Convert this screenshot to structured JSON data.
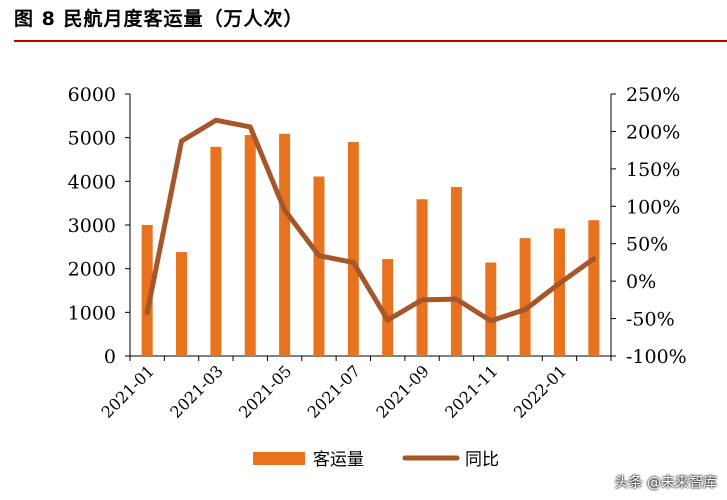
{
  "figure": {
    "title": "图 8  民航月度客运量（万人次）"
  },
  "chart_data": {
    "type": "bar+line",
    "categories": [
      "2021-01",
      "2021-02",
      "2021-03",
      "2021-04",
      "2021-05",
      "2021-06",
      "2021-07",
      "2021-08",
      "2021-09",
      "2021-10",
      "2021-11",
      "2021-12",
      "2022-01",
      "2022-02"
    ],
    "x_tick_labels": [
      "2021-01",
      "2021-03",
      "2021-05",
      "2021-07",
      "2021-09",
      "2021-11",
      "2022-01"
    ],
    "series": [
      {
        "name": "客运量",
        "type": "bar",
        "axis": "left",
        "color": "#e8731f",
        "values": [
          3000,
          2380,
          4790,
          5060,
          5090,
          4110,
          4900,
          2220,
          3590,
          3870,
          2140,
          2700,
          2920,
          3110
        ]
      },
      {
        "name": "同比",
        "type": "line",
        "axis": "right",
        "color": "#a6562a",
        "values": [
          -42,
          187,
          215,
          206,
          95,
          34,
          25,
          -52,
          -25,
          -24,
          -53,
          -38,
          -3,
          30
        ]
      }
    ],
    "y_left": {
      "min": 0,
      "max": 6000,
      "ticks": [
        "0",
        "1000",
        "2000",
        "3000",
        "4000",
        "5000",
        "6000"
      ]
    },
    "y_right": {
      "min": -100,
      "max": 250,
      "ticks": [
        "-100%",
        "-50%",
        "0%",
        "50%",
        "100%",
        "150%",
        "200%",
        "250%"
      ]
    },
    "legend": {
      "position": "bottom",
      "entries": [
        "客运量",
        "同比"
      ]
    },
    "grid": false
  },
  "watermark": "头条 @未来智库"
}
